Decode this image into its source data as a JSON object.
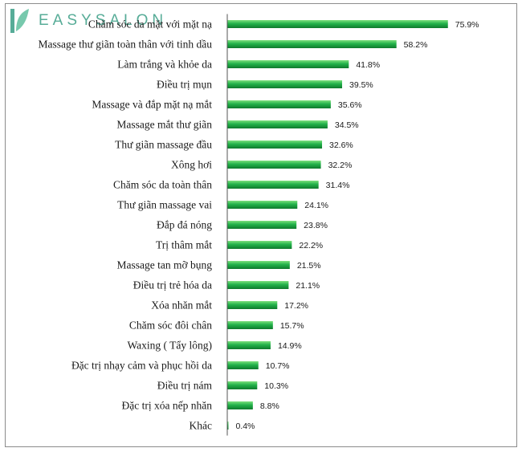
{
  "brand": {
    "logo_text": "EASYSALON",
    "accent": "#3a9e86"
  },
  "colors": {
    "bar_top": "#7ee07e",
    "bar_mid": "#22b24a",
    "bar_bottom": "#0f7a2d",
    "axis": "#555555"
  },
  "chart_data": {
    "type": "bar",
    "orientation": "horizontal",
    "title": "",
    "xlabel": "",
    "ylabel": "",
    "value_format": "percent_one_decimal",
    "xlim": [
      0,
      80
    ],
    "grid": false,
    "legend": "none",
    "categories": [
      "Chăm sóc da mặt với mặt nạ",
      "Massage thư giãn toàn thân với tinh dầu",
      "Làm trắng và khỏe da",
      "Điều trị mụn",
      "Massage và đắp mặt nạ mắt",
      "Massage mắt thư giãn",
      "Thư giãn massage đầu",
      "Xông hơi",
      "Chăm sóc da toàn thân",
      "Thư giãn massage vai",
      "Đắp đá nóng",
      "Trị thâm mắt",
      "Massage tan mỡ bụng",
      "Điều trị trẻ hóa da",
      "Xóa nhăn mắt",
      "Chăm sóc đôi chân",
      "Waxing ( Tẩy lông)",
      "Đặc trị nhạy cảm và phục hồi da",
      "Điều trị nám",
      "Đặc trị xóa nếp nhăn",
      "Khác"
    ],
    "values": [
      75.9,
      58.2,
      41.8,
      39.5,
      35.6,
      34.5,
      32.6,
      32.2,
      31.4,
      24.1,
      23.8,
      22.2,
      21.5,
      21.1,
      17.2,
      15.7,
      14.9,
      10.7,
      10.3,
      8.8,
      0.4
    ],
    "value_labels": [
      "75.9%",
      "58.2%",
      "41.8%",
      "39.5%",
      "35.6%",
      "34.5%",
      "32.6%",
      "32.2%",
      "31.4%",
      "24.1%",
      "23.8%",
      "22.2%",
      "21.5%",
      "21.1%",
      "17.2%",
      "15.7%",
      "14.9%",
      "10.7%",
      "10.3%",
      "8.8%",
      "0.4%"
    ]
  }
}
